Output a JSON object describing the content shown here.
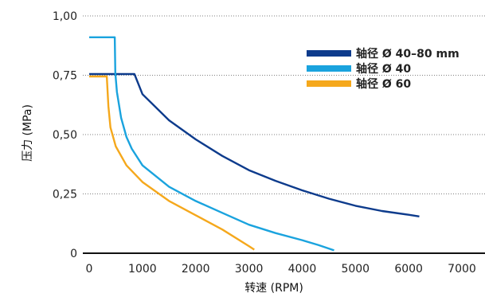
{
  "chart_data": {
    "type": "line",
    "xlabel": "转速 (RPM)",
    "ylabel": "压力 (MPa)",
    "xlim": [
      0,
      7000
    ],
    "ylim": [
      0,
      1.0
    ],
    "x_ticks": [
      "0",
      "1000",
      "2000",
      "3000",
      "4000",
      "5000",
      "6000",
      "7000"
    ],
    "y_ticks": [
      "0",
      "0,25",
      "0,50",
      "0,75",
      "1,00"
    ],
    "grid": "horizontal dotted",
    "legend_position": "top-right",
    "series": [
      {
        "name": "轴径 Ø 40–80 mm",
        "color": "#0d3b8c",
        "points": [
          [
            0,
            0.755
          ],
          [
            850,
            0.755
          ],
          [
            1000,
            0.67
          ],
          [
            1500,
            0.56
          ],
          [
            2000,
            0.48
          ],
          [
            2500,
            0.41
          ],
          [
            3000,
            0.35
          ],
          [
            3500,
            0.305
          ],
          [
            4000,
            0.265
          ],
          [
            4500,
            0.23
          ],
          [
            5000,
            0.2
          ],
          [
            5500,
            0.178
          ],
          [
            6000,
            0.162
          ],
          [
            6200,
            0.155
          ]
        ]
      },
      {
        "name": "轴径 Ø 40",
        "color": "#1aa3de",
        "points": [
          [
            0,
            0.91
          ],
          [
            480,
            0.91
          ],
          [
            490,
            0.76
          ],
          [
            520,
            0.68
          ],
          [
            600,
            0.57
          ],
          [
            700,
            0.49
          ],
          [
            800,
            0.44
          ],
          [
            1000,
            0.37
          ],
          [
            1500,
            0.28
          ],
          [
            2000,
            0.22
          ],
          [
            2500,
            0.17
          ],
          [
            3000,
            0.12
          ],
          [
            3500,
            0.085
          ],
          [
            4000,
            0.055
          ],
          [
            4300,
            0.035
          ],
          [
            4600,
            0.012
          ]
        ]
      },
      {
        "name": "轴径 Ø 60",
        "color": "#f5a81c",
        "points": [
          [
            0,
            0.745
          ],
          [
            330,
            0.745
          ],
          [
            360,
            0.62
          ],
          [
            400,
            0.53
          ],
          [
            500,
            0.45
          ],
          [
            700,
            0.37
          ],
          [
            1000,
            0.3
          ],
          [
            1500,
            0.22
          ],
          [
            2000,
            0.16
          ],
          [
            2500,
            0.1
          ],
          [
            3000,
            0.03
          ],
          [
            3100,
            0.015
          ]
        ]
      }
    ]
  }
}
